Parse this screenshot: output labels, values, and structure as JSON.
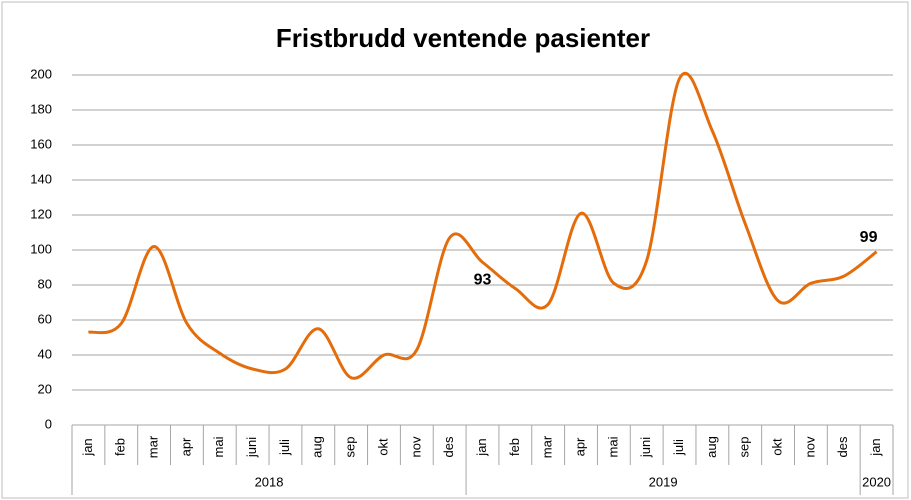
{
  "chart_data": {
    "type": "line",
    "title": "Fristbrudd ventende pasienter",
    "groups": [
      {
        "name": "2018",
        "categories": [
          "jan",
          "feb",
          "mar",
          "apr",
          "mai",
          "juni",
          "juli",
          "aug",
          "sep",
          "okt",
          "nov",
          "des"
        ]
      },
      {
        "name": "2019",
        "categories": [
          "jan",
          "feb",
          "mar",
          "apr",
          "mai",
          "juni",
          "juli",
          "aug",
          "sep",
          "okt",
          "nov",
          "des"
        ]
      },
      {
        "name": "2020",
        "categories": [
          "jan"
        ]
      }
    ],
    "values": [
      53,
      58,
      102,
      58,
      41,
      32,
      32,
      55,
      27,
      40,
      43,
      107,
      93,
      78,
      69,
      121,
      81,
      94,
      198,
      168,
      115,
      71,
      81,
      85,
      99
    ],
    "color": "#e46c0a",
    "ylim": [
      0,
      200
    ],
    "yticks": [
      0,
      20,
      40,
      60,
      80,
      100,
      120,
      140,
      160,
      180,
      200
    ],
    "grid": true
  }
}
